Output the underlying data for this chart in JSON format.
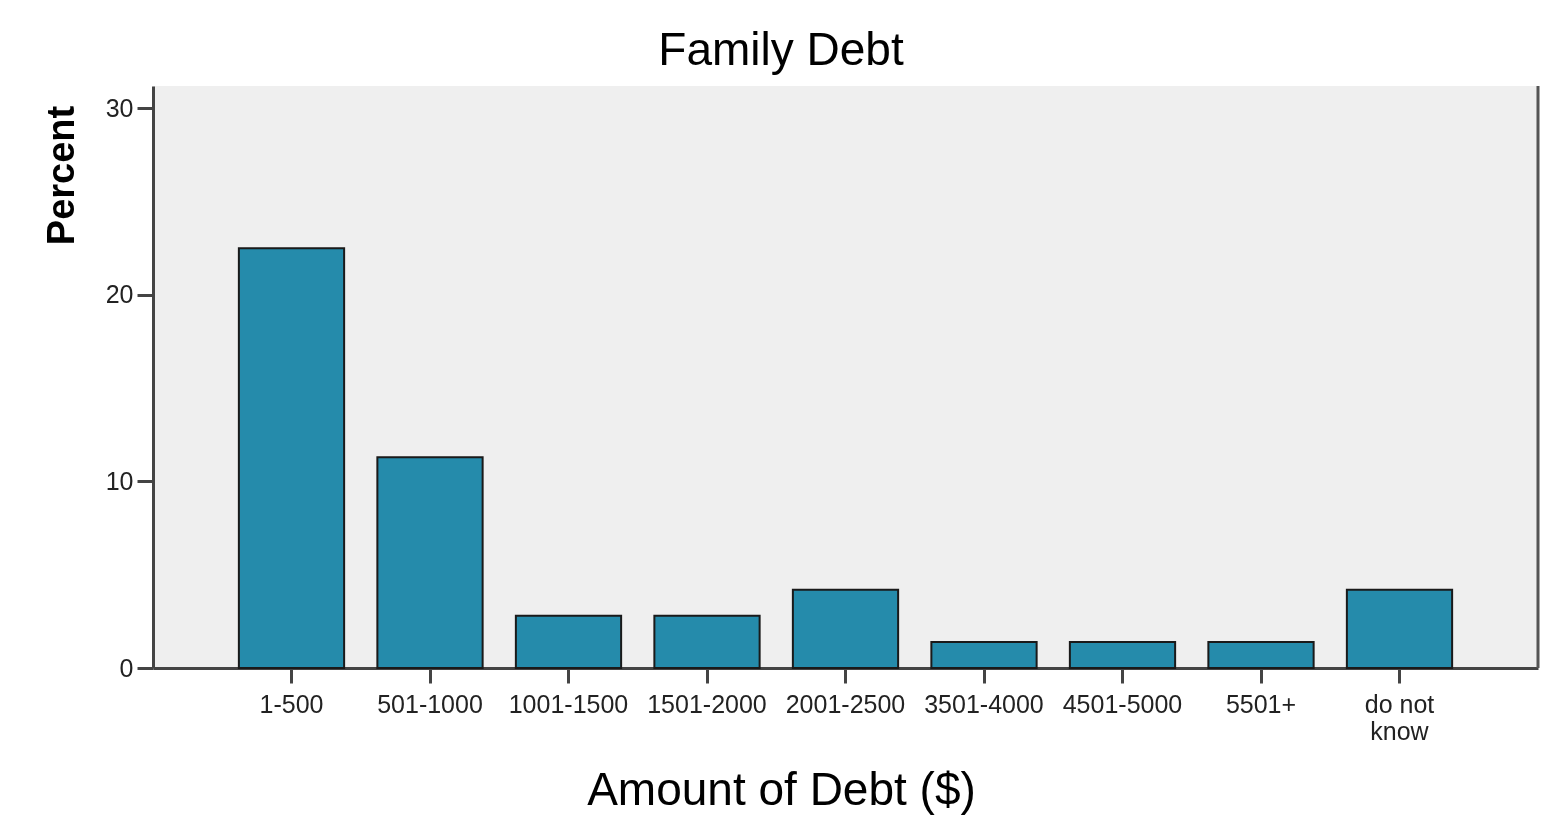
{
  "chart_data": {
    "type": "bar",
    "title": "Family Debt",
    "xlabel": "Amount of Debt ($)",
    "ylabel": "Percent",
    "categories": [
      "1-500",
      "501-1000",
      "1001-1500",
      "1501-2000",
      "2001-2500",
      "3501-4000",
      "4501-5000",
      "5501+",
      "do not know"
    ],
    "values": [
      22.5,
      11.3,
      2.8,
      2.8,
      4.2,
      1.4,
      1.4,
      1.4,
      4.2
    ],
    "color": "#258bab",
    "ylim": [
      0,
      31.2
    ],
    "yticks": [
      0,
      10,
      20,
      30
    ],
    "grid": false
  }
}
